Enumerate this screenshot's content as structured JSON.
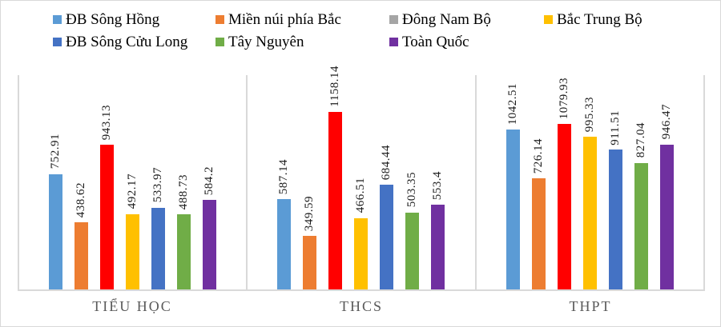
{
  "chart_data": {
    "type": "bar",
    "title": "",
    "xlabel": "",
    "ylabel": "",
    "legend_position": "top",
    "axes_visible": false,
    "gridlines": "vertical category separators only",
    "value_labels": "rotated 90deg above each bar",
    "ylim": [
      0,
      1408
    ],
    "axis_color": "#d9d9d9",
    "categories": [
      "TIỂU HỌC",
      "THCS",
      "THPT"
    ],
    "series": [
      {
        "name": "ĐB Sông Hồng",
        "legend_color": "#5b9bd5",
        "bar_color": "#5b9bd5",
        "values": [
          752.91,
          587.14,
          1042.51
        ]
      },
      {
        "name": "Miền núi phía Bắc",
        "legend_color": "#ed7d31",
        "bar_color": "#ed7d31",
        "values": [
          438.62,
          349.59,
          726.14
        ]
      },
      {
        "name": "Đông Nam Bộ",
        "legend_color": "#a5a5a5",
        "bar_color": "#ff0000",
        "values": [
          943.13,
          1158.14,
          1079.93
        ]
      },
      {
        "name": "Bắc Trung Bộ",
        "legend_color": "#ffc000",
        "bar_color": "#ffc000",
        "values": [
          492.17,
          466.51,
          995.33
        ]
      },
      {
        "name": "ĐB Sông Cửu Long",
        "legend_color": "#4472c4",
        "bar_color": "#4472c4",
        "values": [
          533.97,
          684.44,
          911.51
        ]
      },
      {
        "name": "Tây Nguyên",
        "legend_color": "#70ad47",
        "bar_color": "#70ad47",
        "values": [
          488.73,
          503.35,
          827.04
        ]
      },
      {
        "name": "Toàn Quốc",
        "legend_color": "#7030a0",
        "bar_color": "#7030a0",
        "values": [
          584.2,
          553.4,
          946.47
        ]
      }
    ]
  }
}
